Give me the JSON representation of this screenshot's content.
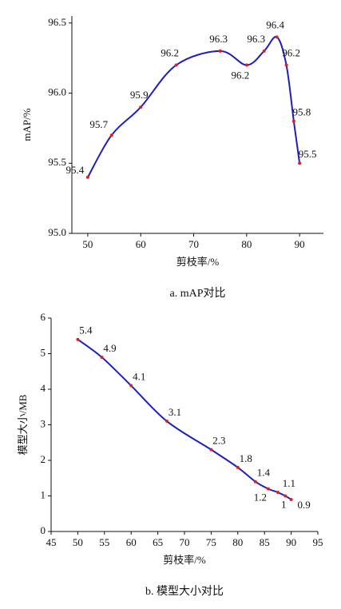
{
  "chart_data": [
    {
      "type": "line",
      "caption": "a. mAP对比",
      "xlabel": "剪枝率/%",
      "ylabel": "mAP/%",
      "x": [
        50,
        54.5,
        60,
        66.7,
        75,
        80,
        83.3,
        85.7,
        87.5,
        88.9,
        90
      ],
      "series": [
        {
          "color": "#1f1fbf",
          "marker_color": "#e02020",
          "values": [
            95.4,
            95.7,
            95.9,
            96.2,
            96.3,
            96.2,
            96.3,
            96.4,
            96.2,
            95.8,
            95.5
          ]
        }
      ],
      "xlim": [
        47,
        94.5
      ],
      "xticks": [
        50,
        60,
        70,
        80,
        90
      ],
      "ylim": [
        95,
        96.55
      ],
      "yticks": [
        {
          "value": 95,
          "label": "95.0"
        },
        95.5,
        {
          "value": 96,
          "label": "96.0"
        },
        96.5
      ]
    },
    {
      "type": "line",
      "caption": "b. 模型大小对比",
      "xlabel": "剪枝率/%",
      "ylabel": "模型大小/MB",
      "x": [
        50,
        54.5,
        60,
        66.7,
        75,
        80,
        83.3,
        85.7,
        87.5,
        88.9,
        90
      ],
      "series": [
        {
          "color": "#1f1fbf",
          "marker_color": "#e02020",
          "values": [
            5.4,
            4.9,
            4.1,
            3.1,
            2.3,
            1.8,
            1.4,
            1.2,
            1.1,
            1,
            0.9
          ]
        }
      ],
      "xlim": [
        45,
        95
      ],
      "xticks": [
        45,
        50,
        55,
        60,
        65,
        70,
        75,
        80,
        85,
        90,
        95
      ],
      "ylim": [
        0,
        6
      ],
      "yticks": [
        0,
        1,
        2,
        3,
        4,
        5,
        6
      ]
    }
  ]
}
